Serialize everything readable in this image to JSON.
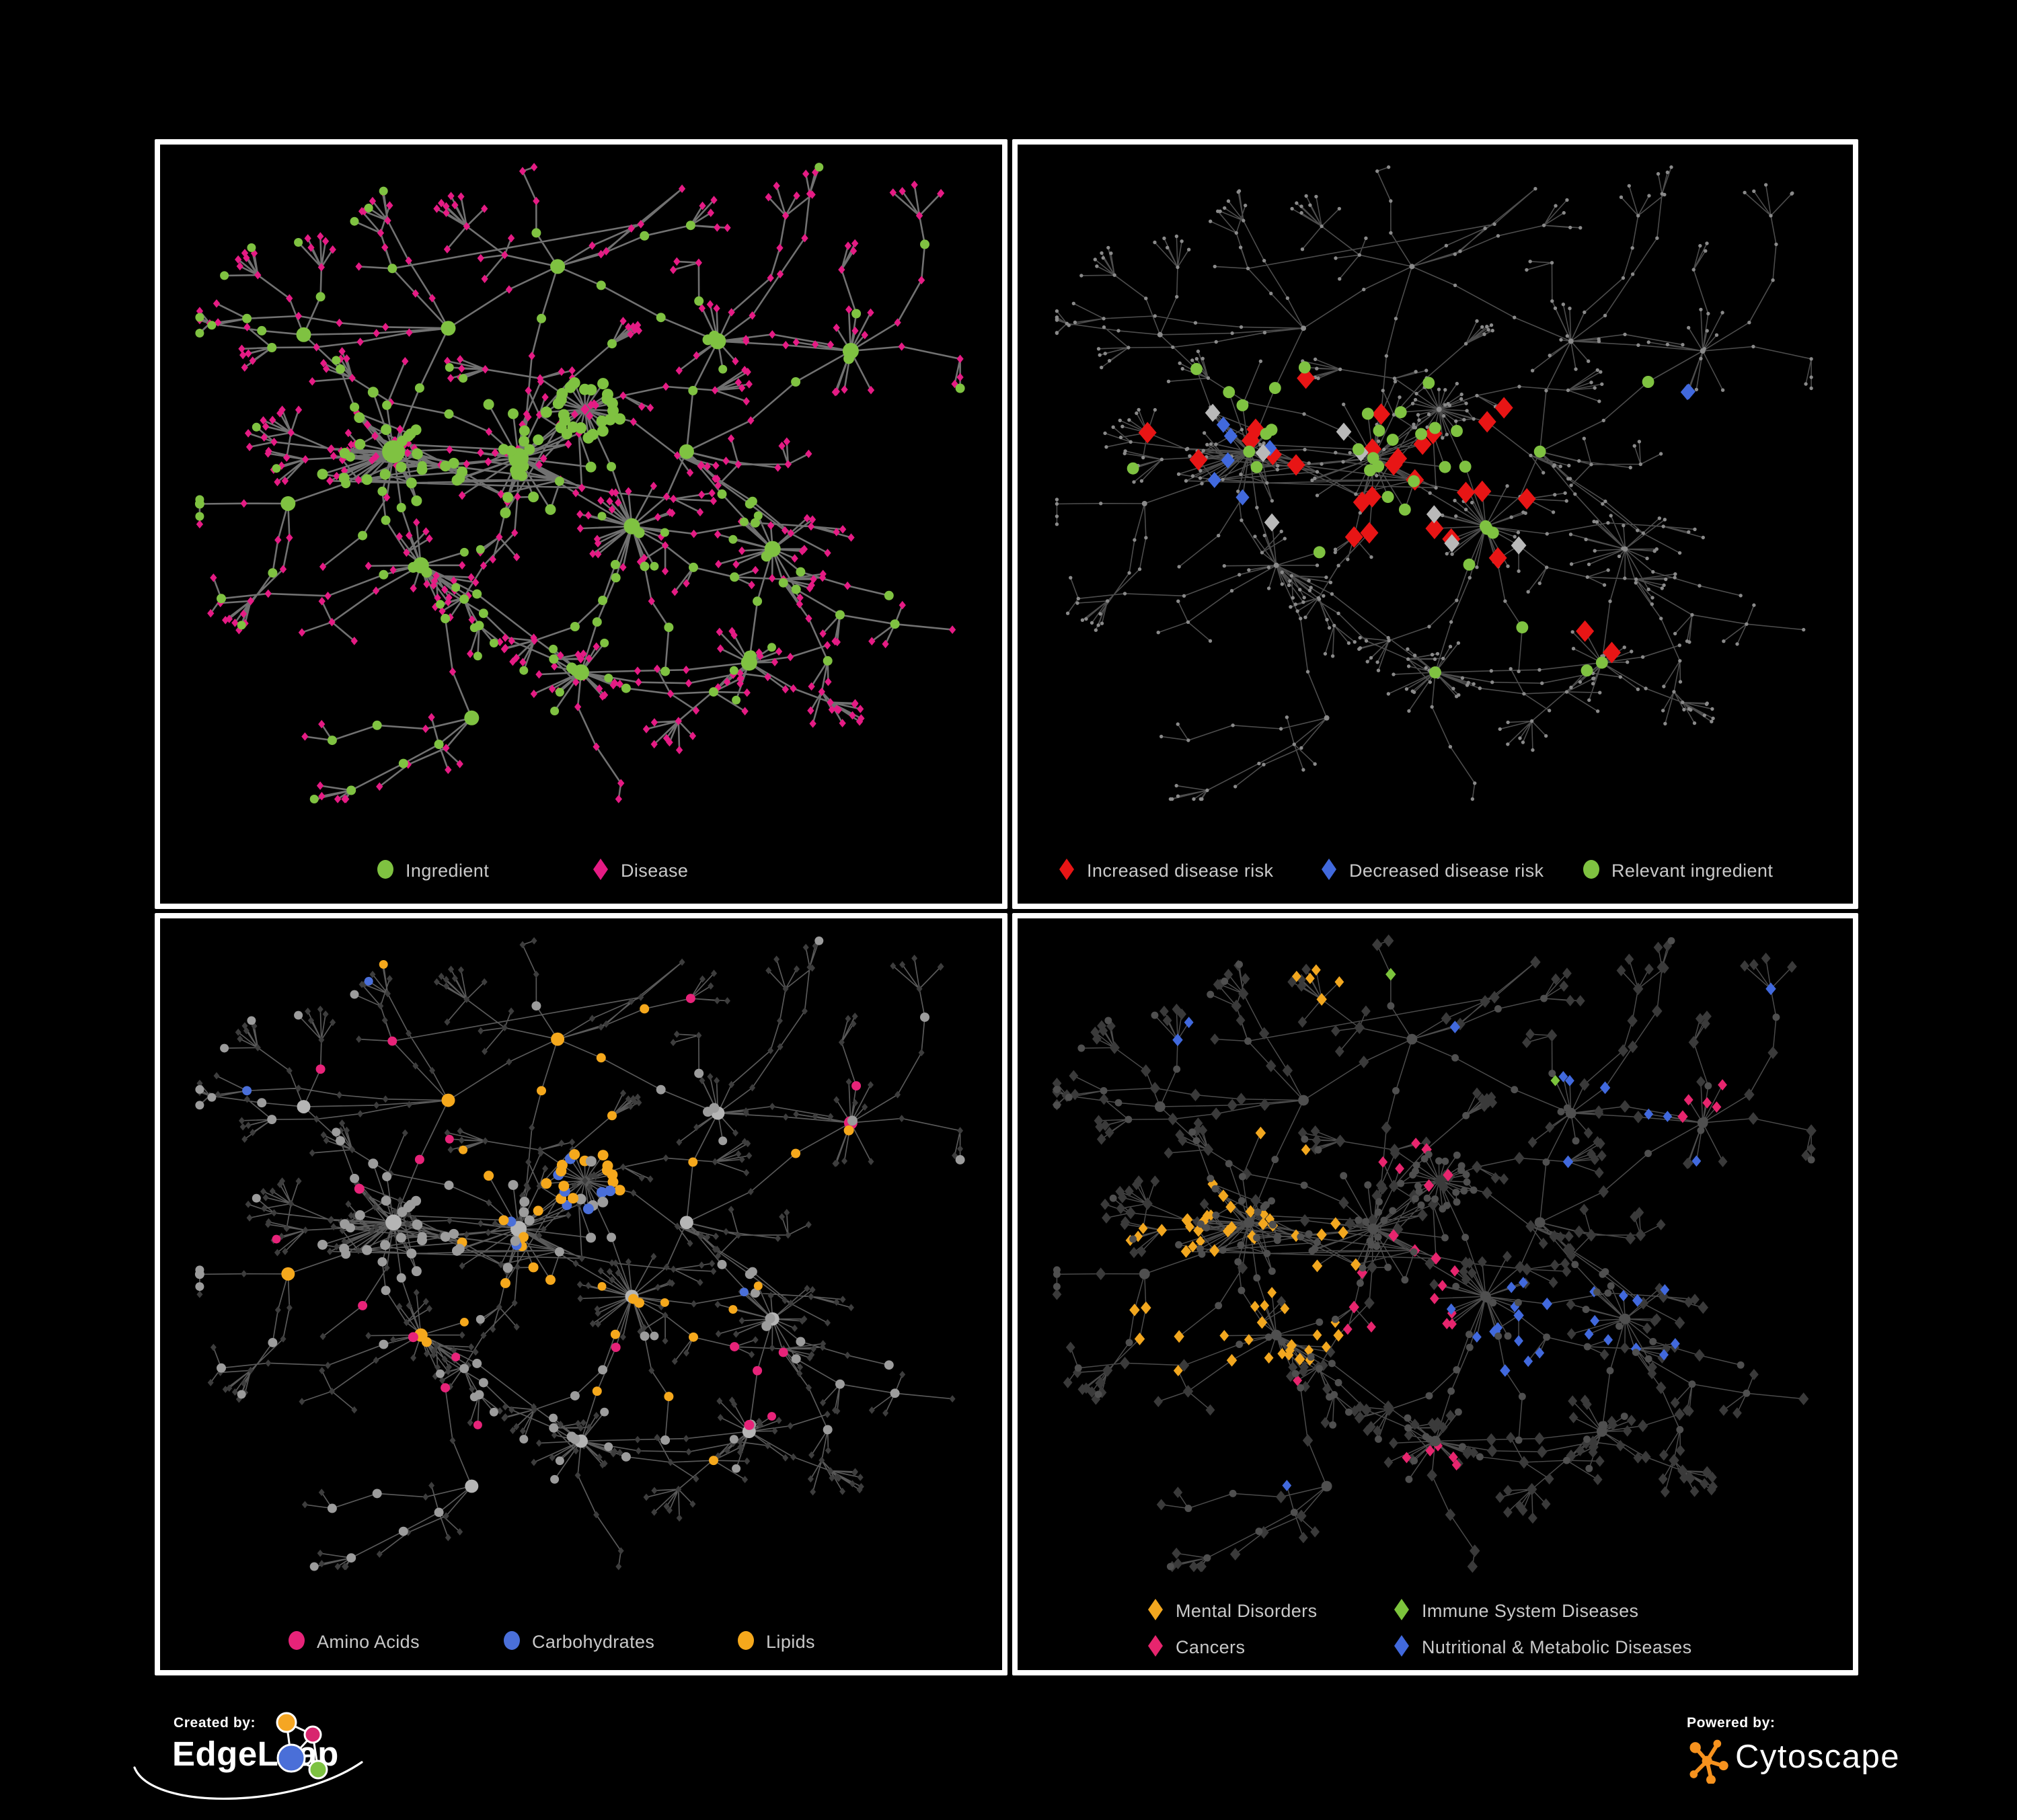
{
  "page": {
    "background": "#000000",
    "panel_border": "#ffffff"
  },
  "panels": [
    {
      "name": "ingredient-disease-network",
      "legend": [
        {
          "shape": "circle",
          "color": "#7FC241",
          "label": "Ingredient"
        },
        {
          "shape": "diamond",
          "color": "#E51B84",
          "label": "Disease"
        }
      ],
      "colors": {
        "edge": "#7d7d7d",
        "ingredient": "#7FC241",
        "disease": "#E51B84"
      }
    },
    {
      "name": "disease-risk-network",
      "legend": [
        {
          "shape": "diamond",
          "color": "#E81515",
          "label": "Increased disease risk"
        },
        {
          "shape": "diamond",
          "color": "#4169DD",
          "label": "Decreased disease risk"
        },
        {
          "shape": "circle",
          "color": "#7FC241",
          "label": "Relevant ingredient"
        }
      ],
      "colors": {
        "edge": "#5f5f5f",
        "node": "#8a8a8a",
        "increased": "#E81515",
        "decreased": "#4169DD",
        "neutral": "#B9B9B9",
        "ingredient": "#7FC241"
      }
    },
    {
      "name": "macronutrient-network",
      "legend": [
        {
          "shape": "circle",
          "color": "#E72379",
          "label": "Amino Acids"
        },
        {
          "shape": "circle",
          "color": "#4A6FD9",
          "label": "Carbohydrates"
        },
        {
          "shape": "circle",
          "color": "#F5A81C",
          "label": "Lipids"
        }
      ],
      "colors": {
        "edge": "#6f6f6f",
        "disease": "#3d3d3d",
        "ingredient": "#9c9c9c",
        "ingredient_hub": "#b5b5b5",
        "amino": "#E72379",
        "carbs": "#4A6FD9",
        "lipids": "#F5A81C"
      }
    },
    {
      "name": "disease-class-network",
      "legend_rows": [
        [
          {
            "shape": "diamond",
            "color": "#F2A71F",
            "label": "Mental Disorders"
          },
          {
            "shape": "diamond",
            "color": "#7CC43C",
            "label": "Immune System Diseases"
          }
        ],
        [
          {
            "shape": "diamond",
            "color": "#E7256E",
            "label": "Cancers"
          },
          {
            "shape": "diamond",
            "color": "#4169DD",
            "label": "Nutritional & Metabolic Diseases"
          }
        ]
      ],
      "colors": {
        "edge": "#646464",
        "ingredient": "#4f4f4f",
        "disease": "#3a3a3a",
        "mental": "#F2A71F",
        "immune": "#7CC43C",
        "cancers": "#E7256E",
        "nutritional": "#4169DD"
      }
    }
  ],
  "footer": {
    "created_by": "Created by:",
    "created_brand": "EdgeLeap",
    "powered_by": "Powered by:",
    "powered_brand": "Cytoscape",
    "edgeleap_logo_colors": {
      "orange": "#F5A623",
      "pink": "#D8256E",
      "blue": "#4A6FD8",
      "green": "#7DC242"
    },
    "cytoscape_logo_color": "#F6921E"
  }
}
